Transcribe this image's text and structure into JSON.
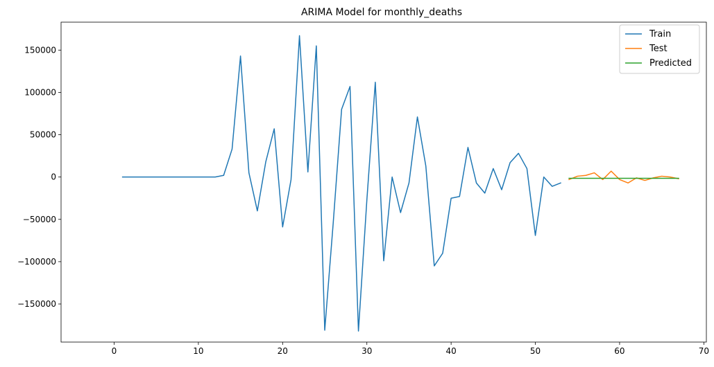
{
  "chart_data": {
    "type": "line",
    "title": "ARIMA Model for monthly_deaths",
    "xlabel": "",
    "ylabel": "",
    "xlim": [
      -6.3,
      70.3
    ],
    "ylim": [
      -195000,
      183000
    ],
    "xticks": [
      0,
      10,
      20,
      30,
      40,
      50,
      60,
      70
    ],
    "yticks": [
      -150000,
      -100000,
      -50000,
      0,
      50000,
      100000,
      150000
    ],
    "grid": false,
    "legend": "top-right",
    "series": [
      {
        "name": "Train",
        "color": "#1f77b4",
        "x": [
          1,
          2,
          3,
          4,
          5,
          6,
          7,
          8,
          9,
          10,
          11,
          12,
          13,
          14,
          15,
          16,
          17,
          18,
          19,
          20,
          21,
          22,
          23,
          24,
          25,
          26,
          27,
          28,
          29,
          30,
          31,
          32,
          33,
          34,
          35,
          36,
          37,
          38,
          39,
          40,
          41,
          42,
          43,
          44,
          45,
          46,
          47,
          48,
          49,
          50,
          51,
          52,
          53
        ],
        "y": [
          0,
          0,
          0,
          0,
          0,
          0,
          0,
          0,
          0,
          0,
          0,
          0,
          2000,
          33000,
          143000,
          5000,
          -40000,
          18000,
          57000,
          -59000,
          -3000,
          167000,
          6000,
          155000,
          -181000,
          -55000,
          80000,
          107000,
          -182000,
          -27000,
          112000,
          -99000,
          0,
          -42000,
          -7000,
          71000,
          13000,
          -105000,
          -90000,
          -25000,
          -23000,
          35000,
          -7000,
          -19000,
          10000,
          -15000,
          17000,
          28000,
          10000,
          -69000,
          0,
          -11000,
          -7000
        ]
      },
      {
        "name": "Test",
        "color": "#ff7f0e",
        "x": [
          54,
          55,
          56,
          57,
          58,
          59,
          60,
          61,
          62,
          63,
          64,
          65,
          66,
          67
        ],
        "y": [
          -3000,
          1000,
          2000,
          5000,
          -3000,
          7000,
          -3000,
          -7000,
          -1000,
          -4000,
          -1000,
          1000,
          0,
          -2000
        ]
      },
      {
        "name": "Predicted",
        "color": "#2ca02c",
        "x": [
          54,
          55,
          56,
          57,
          58,
          59,
          60,
          61,
          62,
          63,
          64,
          65,
          66,
          67
        ],
        "y": [
          -1500,
          -1500,
          -1500,
          -1500,
          -1500,
          -1500,
          -1500,
          -1500,
          -1500,
          -1500,
          -1500,
          -1500,
          -1500,
          -1500
        ]
      }
    ]
  }
}
